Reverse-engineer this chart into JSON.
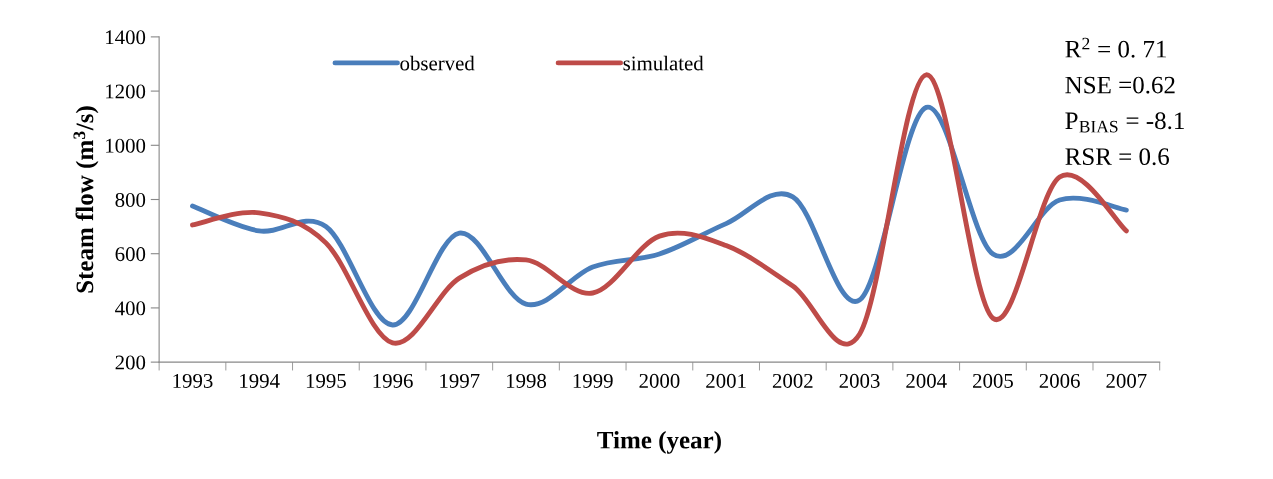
{
  "chart_data": {
    "type": "line",
    "xlabel": "Time (year)",
    "ylabel": "Steam flow (m$^{3}$/s)",
    "categories": [
      "1993",
      "1994",
      "1995",
      "1996",
      "1997",
      "1998",
      "1999",
      "2000",
      "2001",
      "2002",
      "2003",
      "2004",
      "2005",
      "2006",
      "2007"
    ],
    "series": [
      {
        "name": "observed",
        "color": "#4a7ebb",
        "values": [
          776,
          684,
          700,
          337,
          676,
          414,
          551,
          599,
          711,
          810,
          429,
          1140,
          599,
          798,
          761
        ]
      },
      {
        "name": "simulated",
        "color": "#be4b48",
        "values": [
          706,
          751,
          640,
          271,
          510,
          577,
          455,
          665,
          630,
          481,
          303,
          1260,
          362,
          883,
          684
        ]
      }
    ],
    "ylim": [
      200,
      1400
    ],
    "yticks": [
      200,
      400,
      600,
      800,
      1000,
      1200,
      1400
    ],
    "grid": false,
    "legend": "top",
    "marker": "none",
    "line_style": "solid",
    "annotations": [
      "R$^{2}$ = 0. 71",
      "NSE =0.62",
      "P$_{BIAS}$ = -8.1",
      "RSR = 0.6"
    ]
  }
}
